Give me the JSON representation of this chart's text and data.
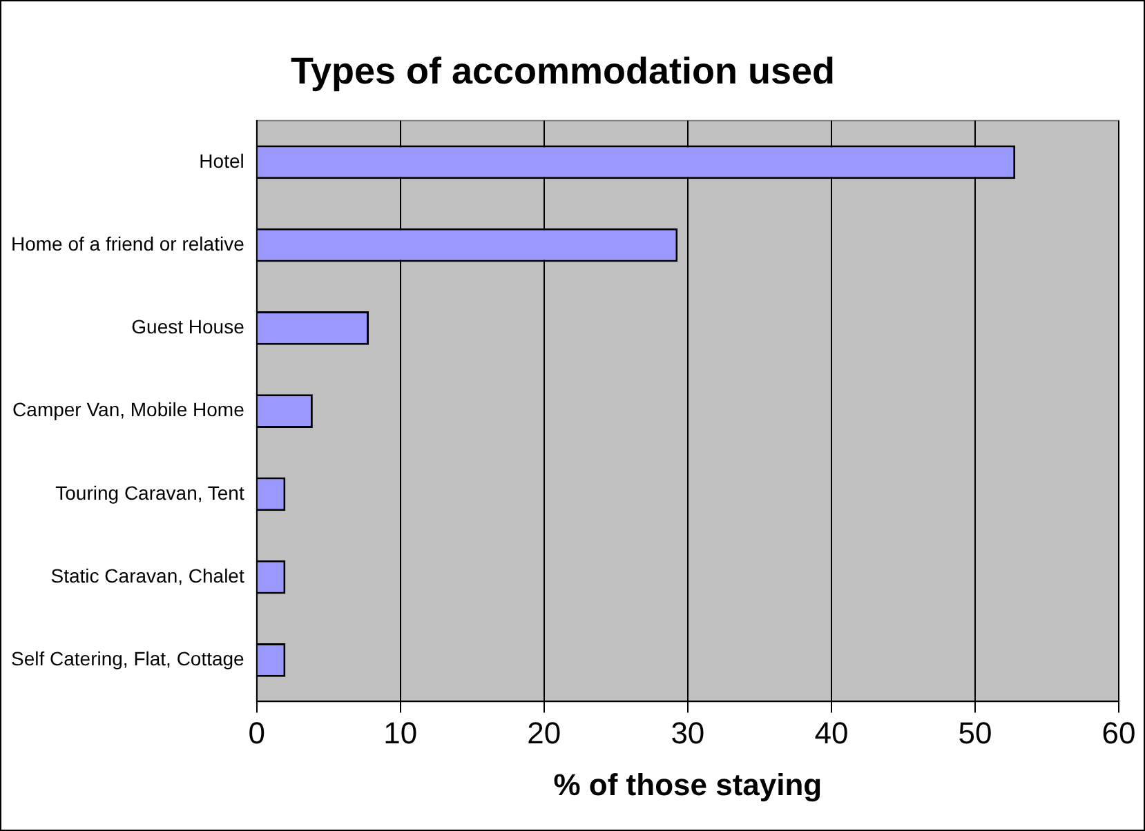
{
  "chart_data": {
    "type": "bar",
    "orientation": "horizontal",
    "title": "Types of accommodation used",
    "xlabel": "% of those staying",
    "categories": [
      "Hotel",
      "Home of a friend or relative",
      "Guest House",
      "Camper Van, Mobile Home",
      "Touring Caravan, Tent",
      "Static Caravan, Chalet",
      "Self Catering, Flat, Cottage"
    ],
    "values": [
      52.8,
      29.3,
      7.8,
      3.9,
      2.0,
      2.0,
      2.0
    ],
    "color": "#9999ff",
    "xlim": [
      0,
      60
    ],
    "xticks": [
      0,
      10,
      20,
      30,
      40,
      50,
      60
    ],
    "grid": "x"
  }
}
